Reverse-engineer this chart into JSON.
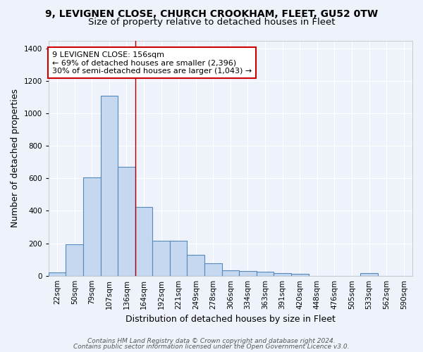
{
  "title1": "9, LEVIGNEN CLOSE, CHURCH CROOKHAM, FLEET, GU52 0TW",
  "title2": "Size of property relative to detached houses in Fleet",
  "xlabel": "Distribution of detached houses by size in Fleet",
  "ylabel": "Number of detached properties",
  "categories": [
    "22sqm",
    "50sqm",
    "79sqm",
    "107sqm",
    "136sqm",
    "164sqm",
    "192sqm",
    "221sqm",
    "249sqm",
    "278sqm",
    "306sqm",
    "334sqm",
    "363sqm",
    "391sqm",
    "420sqm",
    "448sqm",
    "476sqm",
    "505sqm",
    "533sqm",
    "562sqm",
    "590sqm"
  ],
  "values": [
    20,
    195,
    605,
    1110,
    670,
    425,
    215,
    215,
    130,
    75,
    35,
    30,
    25,
    15,
    10,
    0,
    0,
    0,
    15,
    0,
    0
  ],
  "bar_color": "#c5d8f0",
  "bar_edge_color": "#5588bb",
  "annotation_box_text": "9 LEVIGNEN CLOSE: 156sqm\n← 69% of detached houses are smaller (2,396)\n30% of semi-detached houses are larger (1,043) →",
  "annotation_box_color": "#ffffff",
  "annotation_box_edge_color": "#cc0000",
  "red_line_x": 4.5,
  "ylim": [
    0,
    1450
  ],
  "yticks": [
    0,
    200,
    400,
    600,
    800,
    1000,
    1200,
    1400
  ],
  "footer1": "Contains HM Land Registry data © Crown copyright and database right 2024.",
  "footer2": "Contains public sector information licensed under the Open Government Licence v3.0.",
  "bg_color": "#eef2fb",
  "grid_color": "#ffffff",
  "title1_fontsize": 10,
  "title2_fontsize": 9.5,
  "axis_label_fontsize": 9,
  "tick_fontsize": 7.5,
  "annotation_fontsize": 8,
  "footer_fontsize": 6.5
}
